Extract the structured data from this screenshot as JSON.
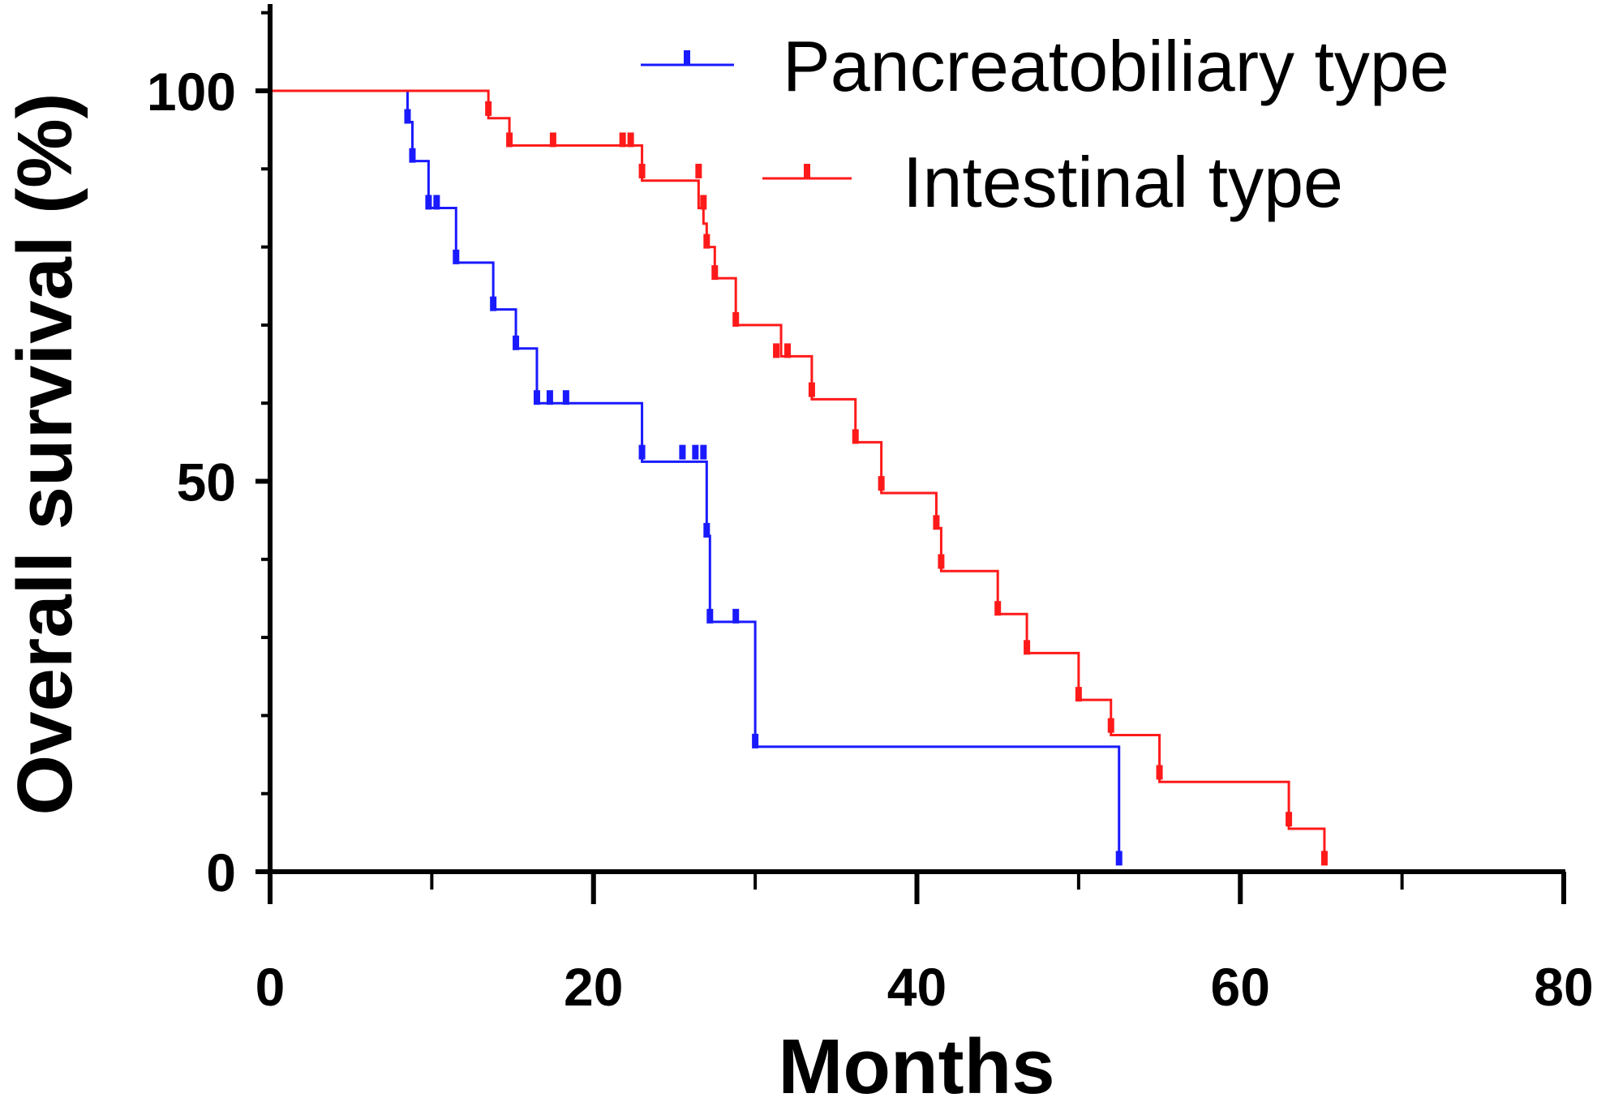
{
  "chart_data": {
    "type": "line",
    "subtype": "kaplan-meier-step",
    "xlabel": "Months",
    "ylabel": "Overall survival (%)",
    "xlim": [
      0,
      80
    ],
    "ylim": [
      0,
      110
    ],
    "xticks": [
      0,
      20,
      40,
      60,
      80
    ],
    "yticks": [
      0,
      50,
      100
    ],
    "xtick_labels": [
      "0",
      "20",
      "40",
      "60",
      "80"
    ],
    "ytick_labels": [
      "0",
      "50",
      "100"
    ],
    "grid": false,
    "legend_position": "top-right",
    "series": [
      {
        "name": "Pancreatobiliary type",
        "color": "#1a1aff",
        "steps": [
          [
            0,
            100
          ],
          [
            8.5,
            96
          ],
          [
            8.8,
            91
          ],
          [
            9.8,
            85
          ],
          [
            11.5,
            78
          ],
          [
            13.8,
            72
          ],
          [
            15.2,
            67
          ],
          [
            16.5,
            60
          ],
          [
            23.0,
            52.5
          ],
          [
            27.0,
            43
          ],
          [
            27.2,
            32
          ],
          [
            30.0,
            16
          ],
          [
            52.5,
            1
          ]
        ],
        "censored": [
          [
            8.5,
            96
          ],
          [
            8.8,
            91
          ],
          [
            9.8,
            85
          ],
          [
            10.3,
            85
          ],
          [
            11.5,
            78
          ],
          [
            13.8,
            72
          ],
          [
            15.2,
            67
          ],
          [
            16.5,
            60
          ],
          [
            17.3,
            60
          ],
          [
            18.3,
            60
          ],
          [
            23.0,
            53
          ],
          [
            25.5,
            53
          ],
          [
            26.3,
            53
          ],
          [
            26.8,
            53
          ],
          [
            27.0,
            43
          ],
          [
            27.2,
            32
          ],
          [
            28.8,
            32
          ],
          [
            30.0,
            16
          ],
          [
            52.5,
            1
          ]
        ]
      },
      {
        "name": "Intestinal type",
        "color": "#ff1a1a",
        "steps": [
          [
            0,
            100
          ],
          [
            13.5,
            96.5
          ],
          [
            14.8,
            93
          ],
          [
            23.0,
            88.5
          ],
          [
            26.5,
            85
          ],
          [
            26.8,
            83
          ],
          [
            27.0,
            80
          ],
          [
            27.5,
            76
          ],
          [
            28.8,
            70
          ],
          [
            31.6,
            66
          ],
          [
            33.5,
            60.5
          ],
          [
            36.2,
            55
          ],
          [
            37.8,
            48.5
          ],
          [
            41.2,
            44
          ],
          [
            41.5,
            38.5
          ],
          [
            45.0,
            33
          ],
          [
            46.8,
            28
          ],
          [
            50.0,
            22
          ],
          [
            52.0,
            17.5
          ],
          [
            55.0,
            11.5
          ],
          [
            63.0,
            5.5
          ],
          [
            65.2,
            1
          ]
        ],
        "censored": [
          [
            13.5,
            97
          ],
          [
            14.8,
            93
          ],
          [
            17.5,
            93
          ],
          [
            21.8,
            93
          ],
          [
            22.3,
            93
          ],
          [
            23.0,
            89
          ],
          [
            26.5,
            89
          ],
          [
            26.8,
            85
          ],
          [
            27.0,
            80
          ],
          [
            27.5,
            76
          ],
          [
            28.8,
            70
          ],
          [
            31.3,
            66
          ],
          [
            32.0,
            66
          ],
          [
            33.5,
            61
          ],
          [
            36.2,
            55
          ],
          [
            37.8,
            49
          ],
          [
            41.2,
            44
          ],
          [
            41.5,
            39
          ],
          [
            45.0,
            33
          ],
          [
            46.8,
            28
          ],
          [
            50.0,
            22
          ],
          [
            52.0,
            18
          ],
          [
            55.0,
            12
          ],
          [
            63.0,
            6
          ],
          [
            65.2,
            1
          ]
        ]
      }
    ]
  }
}
